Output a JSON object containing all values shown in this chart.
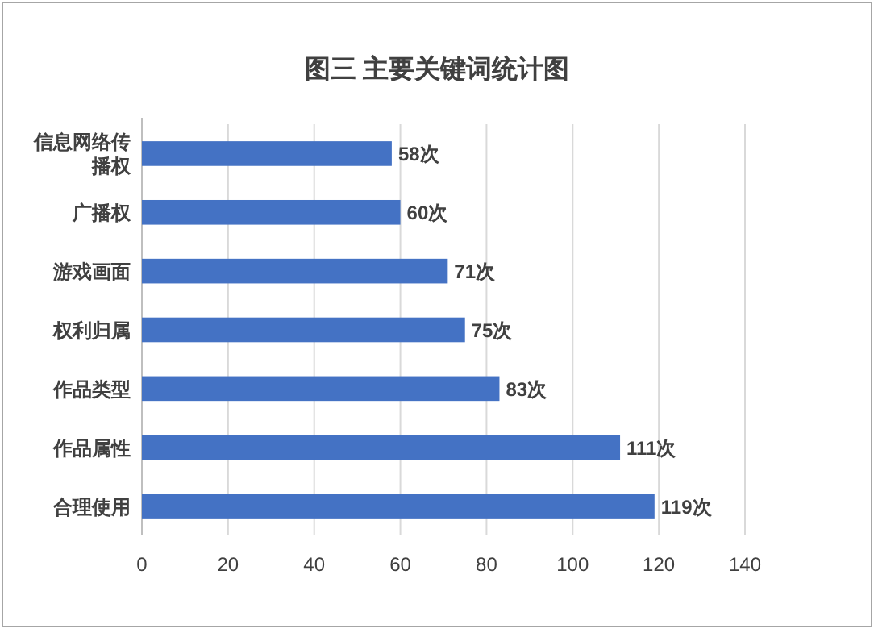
{
  "chart_data": {
    "type": "bar",
    "orientation": "horizontal",
    "title": "图三  主要关键词统计图",
    "categories": [
      "信息网络传播权",
      "广播权",
      "游戏画面",
      "权利归属",
      "作品类型",
      "作品属性",
      "合理使用"
    ],
    "values": [
      58,
      60,
      71,
      75,
      83,
      111,
      119
    ],
    "value_labels": [
      "58次",
      "60次",
      "71次",
      "75次",
      "83次",
      "111次",
      "119次"
    ],
    "color": "#4472c4",
    "xlim": [
      0,
      140
    ],
    "xticks": [
      0,
      20,
      40,
      60,
      80,
      100,
      120,
      140
    ],
    "grid": "x"
  }
}
